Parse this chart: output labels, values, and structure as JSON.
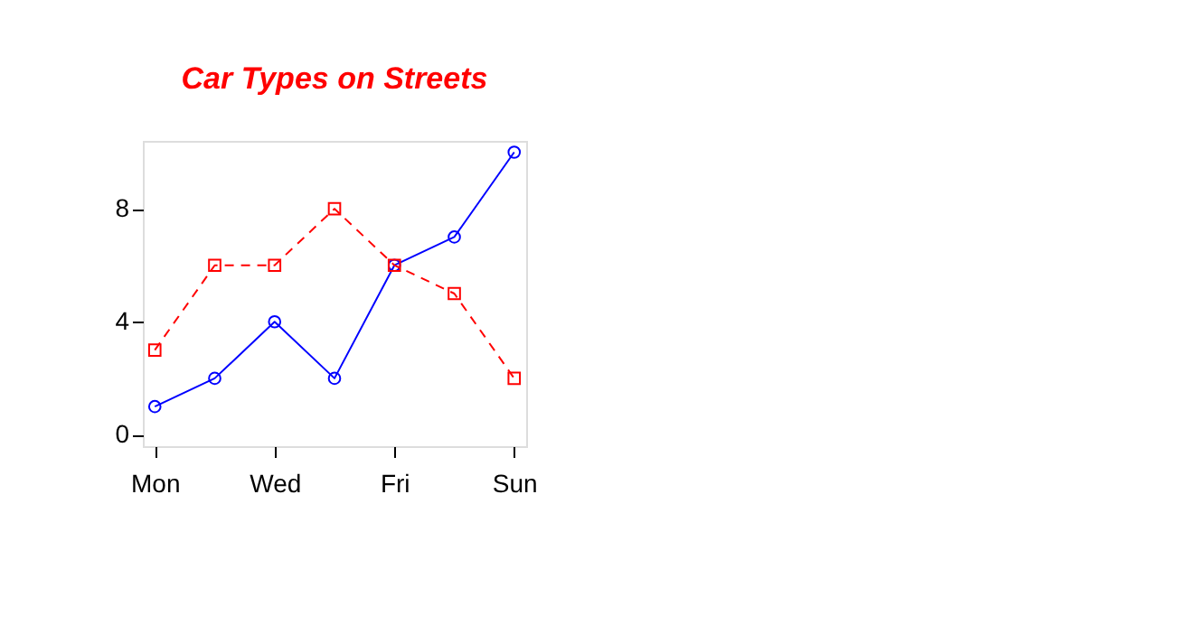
{
  "chart_data": {
    "type": "line",
    "title": "Car Types on Streets",
    "categories": [
      "Mon",
      null,
      "Wed",
      null,
      "Fri",
      null,
      "Sun"
    ],
    "series": [
      {
        "color": "#0000ff",
        "values": [
          1,
          2,
          4,
          2,
          6,
          7,
          10
        ],
        "marker": "circle",
        "line_style": "solid"
      },
      {
        "color": "#ff0000",
        "values": [
          3,
          6,
          6,
          8,
          6,
          5,
          2
        ],
        "marker": "square",
        "line_style": "dashed"
      }
    ],
    "ylim": [
      -0.4,
      10.4
    ],
    "yticks": [
      0,
      4,
      8
    ],
    "grid": false
  }
}
